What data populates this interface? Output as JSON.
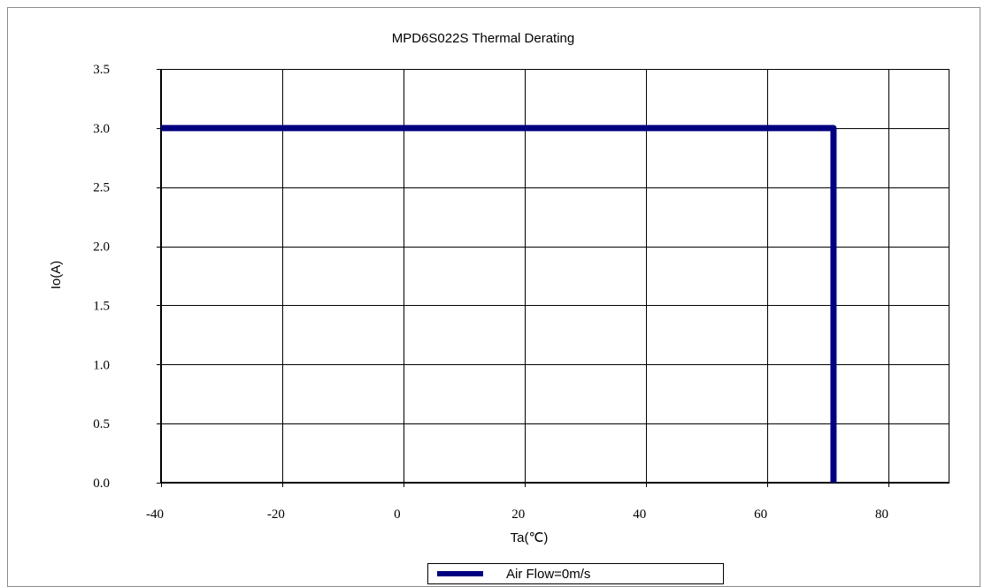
{
  "chart_data": {
    "type": "line",
    "title": "MPD6S022S Thermal Derating",
    "xlabel": "Ta(℃)",
    "ylabel": "Io(A)",
    "xlim": [
      -40,
      90
    ],
    "ylim": [
      0,
      3.5
    ],
    "x_ticks": [
      -40,
      -20,
      0,
      20,
      40,
      60,
      80
    ],
    "x_tick_labels": [
      "-40",
      "-20",
      "0",
      "20",
      "40",
      "60",
      "80"
    ],
    "y_ticks": [
      0,
      0.5,
      1.0,
      1.5,
      2.0,
      2.5,
      3.0,
      3.5
    ],
    "y_tick_labels": [
      "0.0",
      "0.5",
      "1.0",
      "1.5",
      "2.0",
      "2.5",
      "3.0",
      "3.5"
    ],
    "grid": true,
    "legend_position": "bottom-center",
    "series": [
      {
        "name": "Air Flow=0m/s",
        "color": "#000080",
        "x": [
          -40,
          71,
          71
        ],
        "y": [
          3.0,
          3.0,
          0.0
        ]
      }
    ]
  }
}
